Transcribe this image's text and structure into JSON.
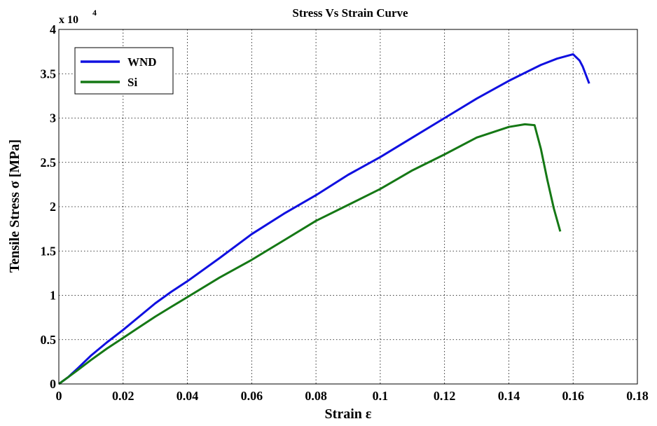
{
  "chart_data": {
    "type": "line",
    "title": "Stress Vs Strain Curve",
    "xlabel": "Strain ε",
    "ylabel": "Tensile Stress σ [MPa]",
    "y_multiplier": "x 10",
    "y_multiplier_exponent": "4",
    "xlim": [
      0,
      0.18
    ],
    "ylim": [
      0,
      4
    ],
    "y_units_scale": 10000,
    "xticks": [
      "0",
      "0.02",
      "0.04",
      "0.06",
      "0.08",
      "0.1",
      "0.12",
      "0.14",
      "0.16",
      "0.18"
    ],
    "yticks": [
      "0",
      "0.5",
      "1",
      "1.5",
      "2",
      "2.5",
      "3",
      "3.5",
      "4"
    ],
    "grid": true,
    "legend_position": "top-left",
    "series": [
      {
        "name": "WND",
        "color": "#1010e0",
        "x": [
          0,
          0.003,
          0.006,
          0.01,
          0.015,
          0.02,
          0.025,
          0.03,
          0.035,
          0.04,
          0.05,
          0.06,
          0.07,
          0.08,
          0.09,
          0.1,
          0.11,
          0.12,
          0.13,
          0.14,
          0.15,
          0.155,
          0.159,
          0.16,
          0.162,
          0.163,
          0.165
        ],
        "y": [
          0,
          0.08,
          0.18,
          0.32,
          0.47,
          0.61,
          0.76,
          0.91,
          1.04,
          1.16,
          1.42,
          1.69,
          1.92,
          2.13,
          2.36,
          2.56,
          2.78,
          3.0,
          3.22,
          3.42,
          3.6,
          3.67,
          3.71,
          3.72,
          3.65,
          3.58,
          3.39
        ]
      },
      {
        "name": "Si",
        "color": "#157815",
        "x": [
          0,
          0.003,
          0.006,
          0.01,
          0.015,
          0.02,
          0.025,
          0.03,
          0.035,
          0.04,
          0.05,
          0.06,
          0.07,
          0.08,
          0.09,
          0.1,
          0.11,
          0.12,
          0.13,
          0.14,
          0.145,
          0.148,
          0.15,
          0.152,
          0.154,
          0.156
        ],
        "y": [
          0,
          0.08,
          0.16,
          0.27,
          0.4,
          0.52,
          0.64,
          0.76,
          0.87,
          0.98,
          1.2,
          1.4,
          1.62,
          1.84,
          2.02,
          2.2,
          2.41,
          2.59,
          2.78,
          2.9,
          2.93,
          2.92,
          2.65,
          2.3,
          1.98,
          1.72
        ]
      }
    ]
  }
}
